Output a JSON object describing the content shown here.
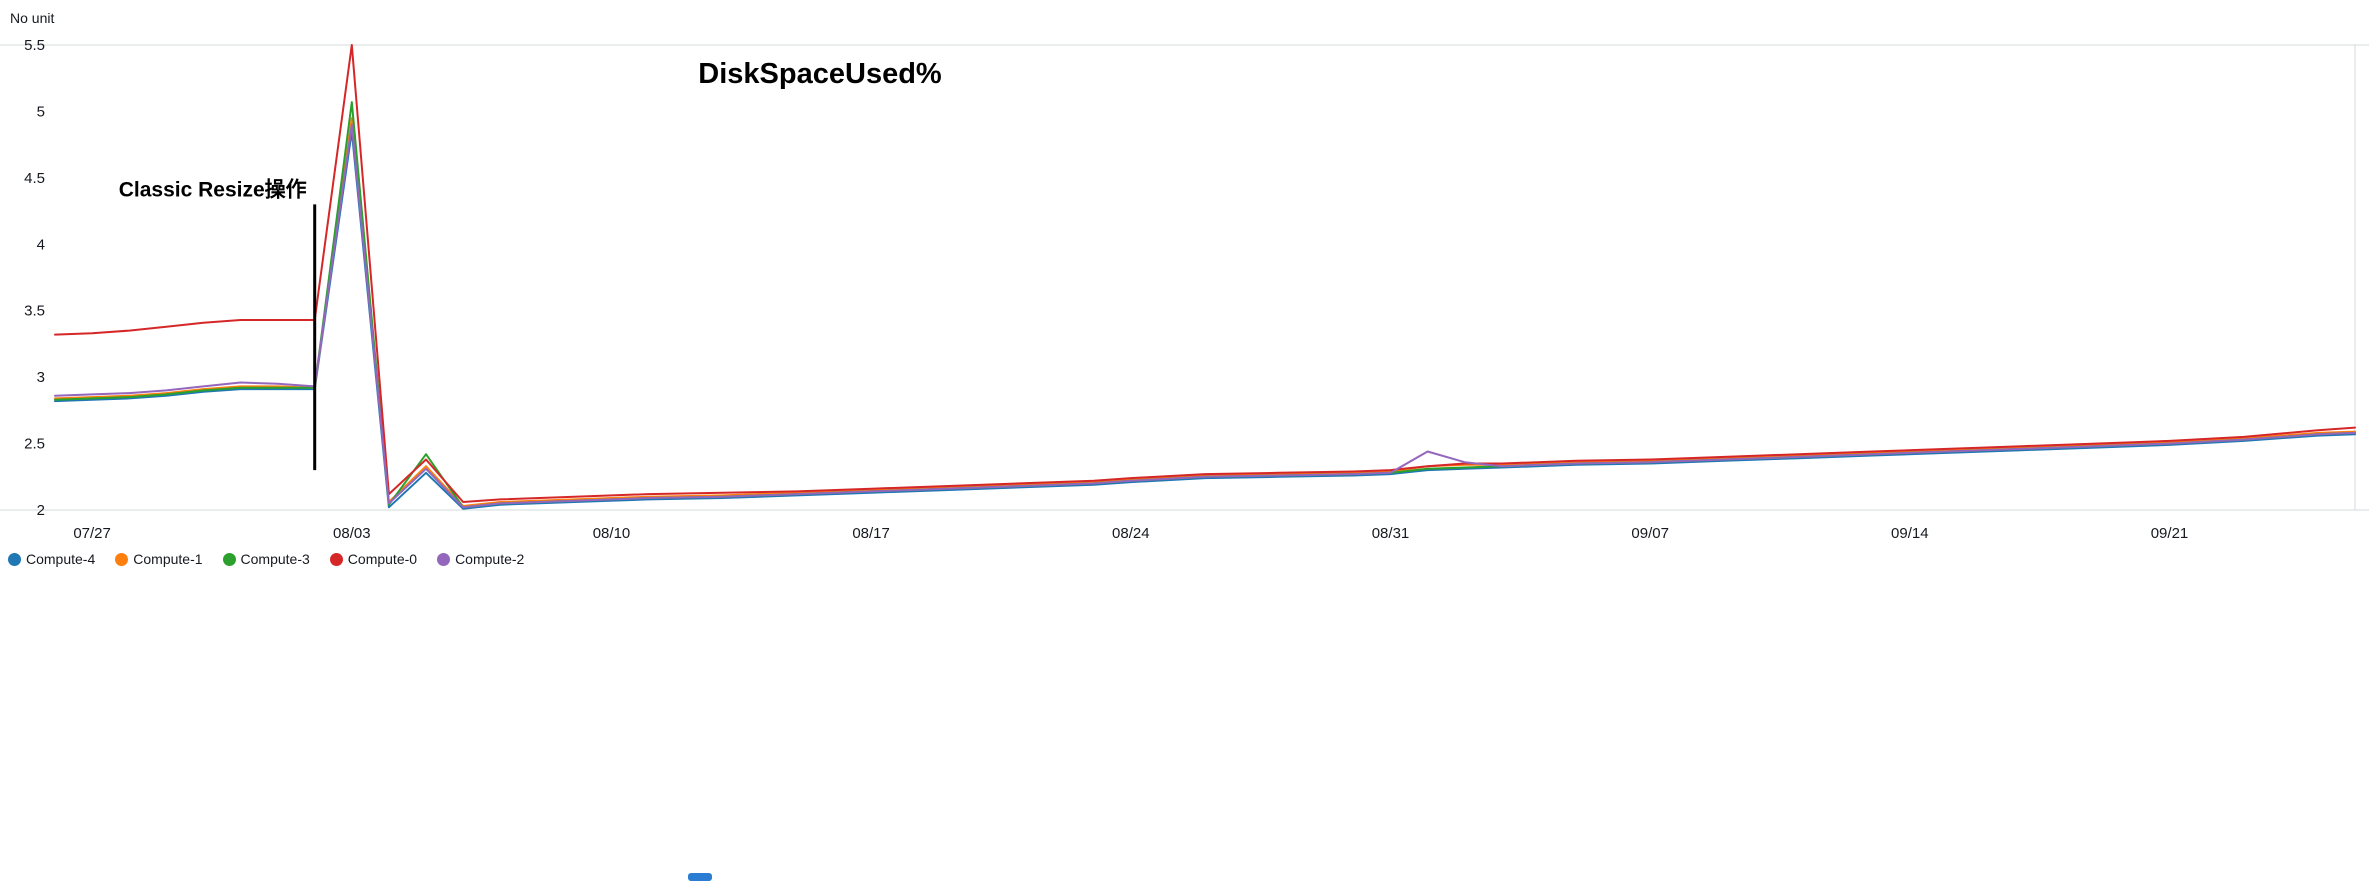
{
  "chart_data": {
    "type": "line",
    "title": "DiskSpaceUsed%",
    "xlabel": "",
    "ylabel": "No unit",
    "ylim": [
      2,
      5.5
    ],
    "grid": false,
    "legend_position": "bottom-left",
    "grid_color": "#d5dbdb",
    "x_ticks": [
      "07/27",
      "08/03",
      "08/10",
      "08/17",
      "08/24",
      "08/31",
      "09/07",
      "09/14",
      "09/21"
    ],
    "y_ticks": [
      2,
      2.5,
      3,
      3.5,
      4,
      4.5,
      5,
      5.5
    ],
    "x": [
      "07/26",
      "07/27",
      "07/28",
      "07/29",
      "07/30",
      "07/31",
      "08/01",
      "08/02",
      "08/03",
      "08/04",
      "08/05",
      "08/06",
      "08/07",
      "08/09",
      "08/11",
      "08/13",
      "08/15",
      "08/17",
      "08/19",
      "08/21",
      "08/23",
      "08/24",
      "08/26",
      "08/28",
      "08/30",
      "08/31",
      "09/01",
      "09/02",
      "09/03",
      "09/05",
      "09/07",
      "09/09",
      "09/11",
      "09/13",
      "09/15",
      "09/17",
      "09/19",
      "09/21",
      "09/23",
      "09/25",
      "09/26"
    ],
    "series": [
      {
        "name": "Compute-4",
        "color": "#1f77b4",
        "values": [
          2.82,
          2.83,
          2.84,
          2.86,
          2.89,
          2.91,
          2.91,
          2.91,
          4.85,
          2.02,
          2.28,
          2.01,
          2.04,
          2.06,
          2.08,
          2.09,
          2.11,
          2.13,
          2.15,
          2.17,
          2.19,
          2.21,
          2.24,
          2.25,
          2.26,
          2.27,
          2.3,
          2.31,
          2.32,
          2.34,
          2.35,
          2.37,
          2.39,
          2.41,
          2.43,
          2.45,
          2.47,
          2.49,
          2.52,
          2.56,
          2.57
        ]
      },
      {
        "name": "Compute-1",
        "color": "#ff7f0e",
        "values": [
          2.84,
          2.85,
          2.86,
          2.88,
          2.91,
          2.93,
          2.93,
          2.92,
          4.95,
          2.06,
          2.33,
          2.03,
          2.06,
          2.08,
          2.1,
          2.11,
          2.13,
          2.15,
          2.17,
          2.19,
          2.21,
          2.23,
          2.26,
          2.27,
          2.28,
          2.29,
          2.33,
          2.34,
          2.34,
          2.36,
          2.37,
          2.39,
          2.41,
          2.43,
          2.45,
          2.47,
          2.49,
          2.51,
          2.54,
          2.58,
          2.59
        ]
      },
      {
        "name": "Compute-3",
        "color": "#2ca02c",
        "values": [
          2.83,
          2.84,
          2.85,
          2.87,
          2.9,
          2.92,
          2.92,
          2.92,
          5.07,
          2.04,
          2.42,
          2.02,
          2.05,
          2.07,
          2.09,
          2.1,
          2.12,
          2.14,
          2.16,
          2.18,
          2.2,
          2.22,
          2.25,
          2.26,
          2.27,
          2.28,
          2.31,
          2.32,
          2.33,
          2.35,
          2.36,
          2.38,
          2.4,
          2.42,
          2.44,
          2.46,
          2.48,
          2.5,
          2.53,
          2.57,
          2.58
        ]
      },
      {
        "name": "Compute-0",
        "color": "#d62728",
        "values": [
          3.32,
          3.33,
          3.35,
          3.38,
          3.41,
          3.43,
          3.43,
          3.43,
          5.5,
          2.12,
          2.38,
          2.06,
          2.08,
          2.1,
          2.12,
          2.13,
          2.14,
          2.16,
          2.18,
          2.2,
          2.22,
          2.24,
          2.27,
          2.28,
          2.29,
          2.3,
          2.33,
          2.35,
          2.35,
          2.37,
          2.38,
          2.4,
          2.42,
          2.44,
          2.46,
          2.48,
          2.5,
          2.52,
          2.55,
          2.6,
          2.62
        ]
      },
      {
        "name": "Compute-2",
        "color": "#9467bd",
        "values": [
          2.86,
          2.87,
          2.88,
          2.9,
          2.93,
          2.96,
          2.95,
          2.93,
          4.9,
          2.05,
          2.31,
          2.02,
          2.05,
          2.07,
          2.09,
          2.1,
          2.12,
          2.14,
          2.16,
          2.18,
          2.2,
          2.22,
          2.25,
          2.26,
          2.27,
          2.28,
          2.44,
          2.36,
          2.33,
          2.35,
          2.36,
          2.38,
          2.4,
          2.42,
          2.44,
          2.46,
          2.48,
          2.5,
          2.53,
          2.57,
          2.58
        ]
      }
    ],
    "annotation": {
      "text": "Classic Resize操作",
      "x": "08/02",
      "y_top": 4.3,
      "y_bottom": 2.3
    }
  }
}
